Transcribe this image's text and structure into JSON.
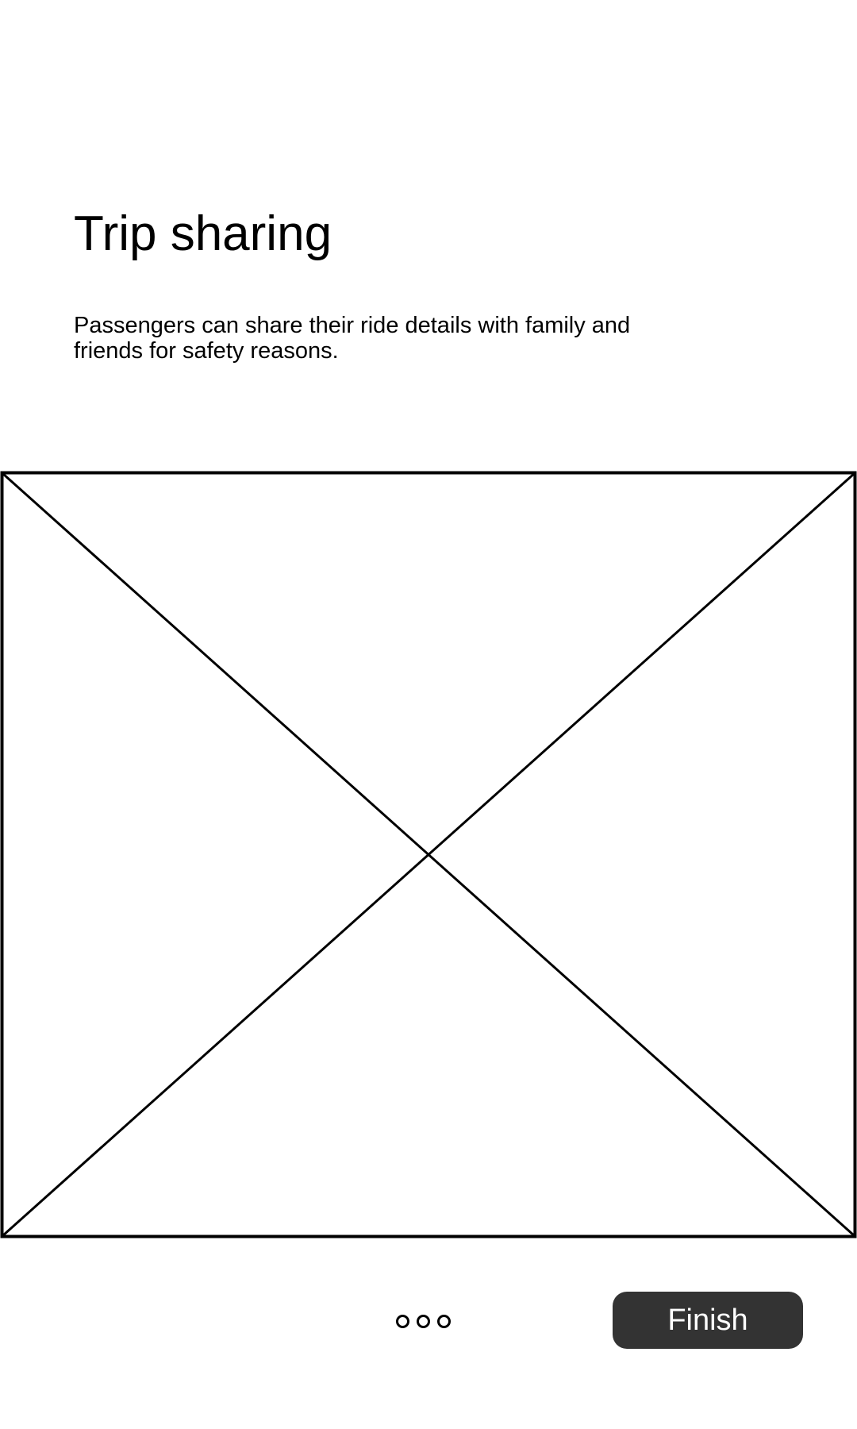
{
  "screen": {
    "title": "Trip sharing",
    "description": "Passengers can share their ride details with family and friends for safety reasons."
  },
  "pager": {
    "page_count": 3
  },
  "actions": {
    "finish_label": "Finish"
  },
  "colors": {
    "background": "#ffffff",
    "text": "#000000",
    "button_background": "#333333",
    "button_text": "#ffffff"
  }
}
